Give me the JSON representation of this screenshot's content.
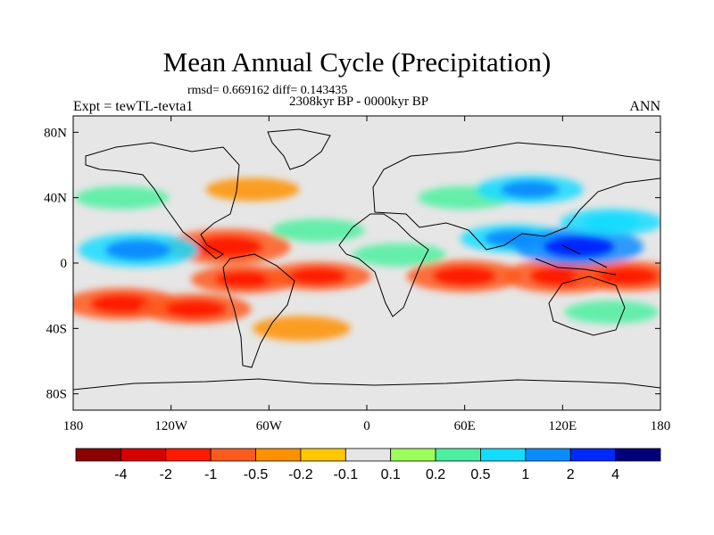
{
  "chart_data": {
    "type": "heatmap",
    "title": "Mean Annual Cycle (Precipitation)",
    "stats_text": "rmsd= 0.669162 diff= 0.143435",
    "period_text": "2308kyr BP - 0000kyr BP",
    "experiment_text": "Expt = tewTL-tevta1",
    "season_text": "ANN",
    "x_ticks": [
      "180",
      "120W",
      "60W",
      "0",
      "60E",
      "120E",
      "180"
    ],
    "x_tick_values": [
      -180,
      -120,
      -60,
      0,
      60,
      120,
      180
    ],
    "y_ticks": [
      "80N",
      "40N",
      "0",
      "40S",
      "80S"
    ],
    "y_tick_values": [
      80,
      40,
      0,
      -40,
      -80
    ],
    "xlim": [
      -180,
      180
    ],
    "ylim": [
      -90,
      90
    ],
    "colorbar_levels": [
      "-4",
      "-2",
      "-1",
      "-0.5",
      "-0.2",
      "-0.1",
      "0.1",
      "0.2",
      "0.5",
      "1",
      "2",
      "4"
    ],
    "colorbar_colors": [
      "#8b0000",
      "#d70000",
      "#ff1a00",
      "#ff5a1e",
      "#ff9100",
      "#ffc800",
      "#e6e6e6",
      "#9bff5a",
      "#4cf0a0",
      "#14dcff",
      "#0a8cff",
      "#0028ff",
      "#00007d"
    ],
    "anomalies": [
      {
        "lon": -150,
        "lat": -25,
        "value": -0.8
      },
      {
        "lon": -105,
        "lat": -28,
        "value": -0.7
      },
      {
        "lon": -75,
        "lat": -10,
        "value": -0.6
      },
      {
        "lon": -85,
        "lat": 10,
        "value": -1.0
      },
      {
        "lon": -140,
        "lat": 8,
        "value": 0.9
      },
      {
        "lon": -30,
        "lat": -8,
        "value": -0.6
      },
      {
        "lon": 60,
        "lat": -8,
        "value": -0.8
      },
      {
        "lon": 120,
        "lat": -8,
        "value": -0.9
      },
      {
        "lon": 160,
        "lat": -8,
        "value": -0.7
      },
      {
        "lon": 20,
        "lat": 5,
        "value": 0.3
      },
      {
        "lon": 90,
        "lat": 15,
        "value": 0.6
      },
      {
        "lon": 130,
        "lat": 10,
        "value": 1.1
      },
      {
        "lon": 150,
        "lat": 25,
        "value": 0.5
      },
      {
        "lon": -30,
        "lat": 20,
        "value": 0.3
      },
      {
        "lon": 60,
        "lat": 40,
        "value": 0.3
      },
      {
        "lon": 100,
        "lat": 45,
        "value": 0.6
      },
      {
        "lon": -150,
        "lat": 40,
        "value": 0.3
      },
      {
        "lon": -70,
        "lat": 45,
        "value": -0.3
      },
      {
        "lon": -40,
        "lat": -40,
        "value": -0.4
      },
      {
        "lon": 150,
        "lat": -30,
        "value": 0.3
      }
    ]
  }
}
